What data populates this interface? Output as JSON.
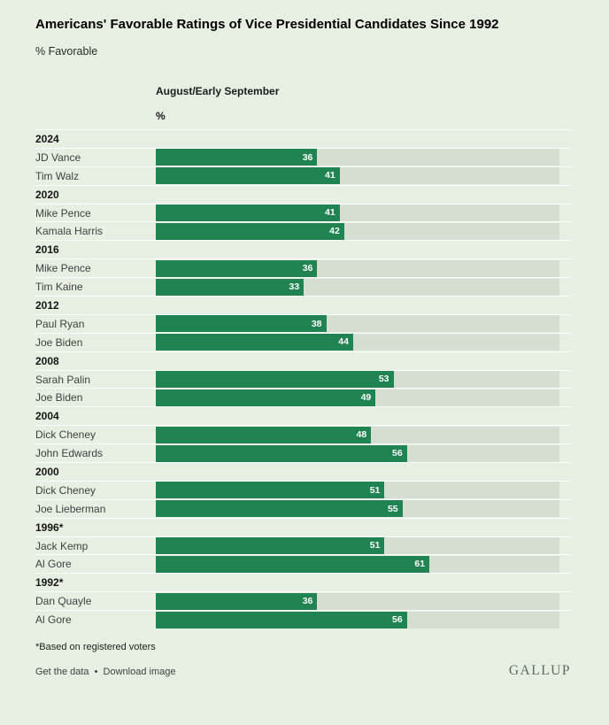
{
  "header": {
    "title": "Americans' Favorable Ratings of Vice Presidential Candidates Since 1992",
    "subtitle": "% Favorable"
  },
  "columns": {
    "bar_header": "August/Early September",
    "bar_unit": "%"
  },
  "chart_data": {
    "type": "bar",
    "orientation": "horizontal",
    "title": "Americans' Favorable Ratings of Vice Presidential Candidates Since 1992",
    "xlabel": "% Favorable",
    "xlim": [
      0,
      90
    ],
    "grid": false,
    "legend": "none",
    "value_labels": "inside-bar-right",
    "groups": [
      {
        "year": "2024",
        "candidates": [
          {
            "name": "JD Vance",
            "value": 36
          },
          {
            "name": "Tim Walz",
            "value": 41
          }
        ]
      },
      {
        "year": "2020",
        "candidates": [
          {
            "name": "Mike Pence",
            "value": 41
          },
          {
            "name": "Kamala Harris",
            "value": 42
          }
        ]
      },
      {
        "year": "2016",
        "candidates": [
          {
            "name": "Mike Pence",
            "value": 36
          },
          {
            "name": "Tim Kaine",
            "value": 33
          }
        ]
      },
      {
        "year": "2012",
        "candidates": [
          {
            "name": "Paul Ryan",
            "value": 38
          },
          {
            "name": "Joe Biden",
            "value": 44
          }
        ]
      },
      {
        "year": "2008",
        "candidates": [
          {
            "name": "Sarah Palin",
            "value": 53
          },
          {
            "name": "Joe Biden",
            "value": 49
          }
        ]
      },
      {
        "year": "2004",
        "candidates": [
          {
            "name": "Dick Cheney",
            "value": 48
          },
          {
            "name": "John Edwards",
            "value": 56
          }
        ]
      },
      {
        "year": "2000",
        "candidates": [
          {
            "name": "Dick Cheney",
            "value": 51
          },
          {
            "name": "Joe Lieberman",
            "value": 55
          }
        ]
      },
      {
        "year": "1996*",
        "candidates": [
          {
            "name": "Jack Kemp",
            "value": 51
          },
          {
            "name": "Al Gore",
            "value": 61
          }
        ]
      },
      {
        "year": "1992*",
        "candidates": [
          {
            "name": "Dan Quayle",
            "value": 36
          },
          {
            "name": "Al Gore",
            "value": 56
          }
        ]
      }
    ]
  },
  "footer": {
    "footnote": "*Based on registered voters",
    "links": [
      {
        "label": "Get the data"
      },
      {
        "label": "Download image"
      }
    ],
    "separator": "•",
    "brand": "GALLUP"
  },
  "colors": {
    "bg": "#e6efe1",
    "track": "#d6ded1",
    "bar": "#1f8352",
    "separator": "rgba(255,255,255,0.88)"
  }
}
